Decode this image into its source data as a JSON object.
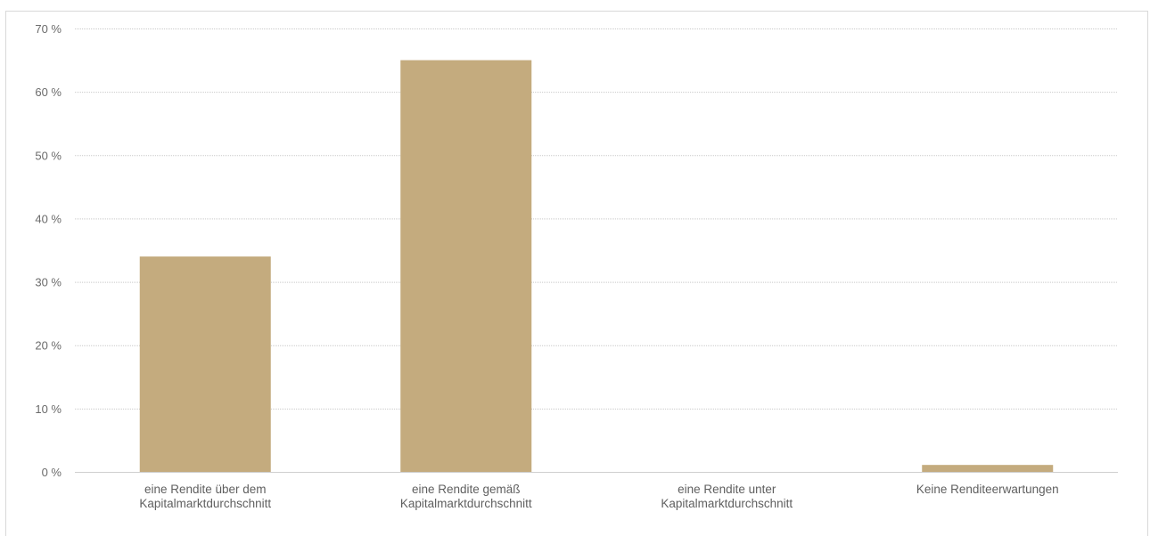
{
  "chart_data": {
    "type": "bar",
    "categories": [
      [
        "eine Rendite über dem",
        "Kapitalmarktdurchschnitt"
      ],
      [
        "eine Rendite gemäß",
        "Kapitalmarktdurchschnitt"
      ],
      [
        "eine Rendite unter",
        "Kapitalmarktdurchschnitt"
      ],
      [
        "Keine Renditeerwartungen"
      ]
    ],
    "values": [
      34,
      65,
      0,
      1.1
    ],
    "ylim": [
      0,
      70
    ],
    "yticks": [
      0,
      10,
      20,
      30,
      40,
      50,
      60,
      70
    ],
    "ytick_suffix": " %",
    "grid": true,
    "bar_color": "#c4ab7e",
    "title": "",
    "xlabel": "",
    "ylabel": ""
  }
}
